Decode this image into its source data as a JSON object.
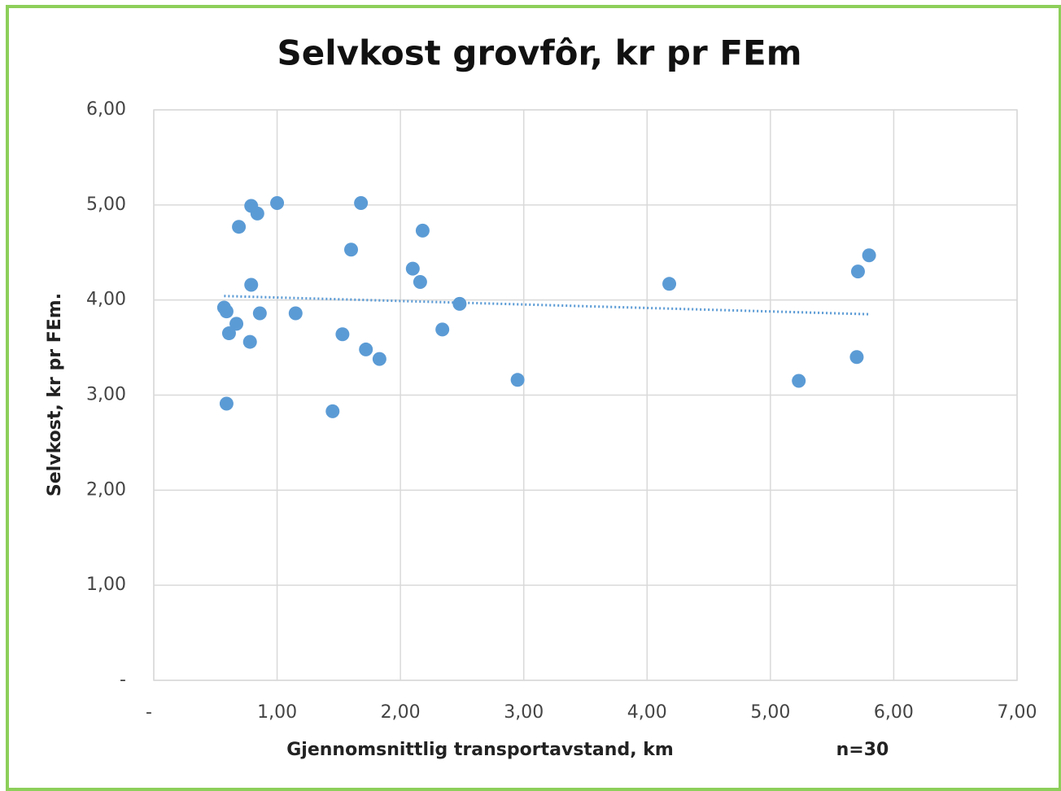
{
  "chart_data": {
    "type": "scatter",
    "title": "Selvkost grovfôr, kr pr FEm",
    "x_label": "Gjennomsnittlig transportavstand,  km",
    "y_label": "Selvkost, kr pr FEm.",
    "annotation": "n=30",
    "color": "#5b9bd5",
    "trendline": {
      "color": "#5b9bd5",
      "style": "dotted"
    },
    "grid": true,
    "x": [
      0.57,
      0.59,
      0.61,
      0.67,
      0.59,
      0.69,
      0.79,
      0.84,
      0.79,
      0.78,
      0.86,
      1.0,
      1.15,
      1.45,
      1.53,
      1.6,
      1.68,
      1.72,
      1.83,
      2.1,
      2.16,
      2.18,
      2.34,
      2.48,
      2.95,
      4.18,
      5.23,
      5.7,
      5.71,
      5.8
    ],
    "values": [
      3.92,
      3.88,
      3.65,
      3.75,
      2.91,
      4.77,
      4.99,
      4.91,
      4.16,
      3.56,
      3.86,
      5.02,
      3.86,
      2.83,
      3.64,
      4.53,
      5.02,
      3.48,
      3.38,
      4.33,
      4.19,
      4.73,
      3.69,
      3.96,
      3.16,
      4.17,
      3.15,
      3.4,
      4.3,
      4.47
    ],
    "xlim": [
      0,
      7
    ],
    "xticks": [
      {
        "value": 0,
        "label": "-"
      },
      {
        "value": 1,
        "label": "1,00"
      },
      {
        "value": 2,
        "label": "2,00"
      },
      {
        "value": 3,
        "label": "3,00"
      },
      {
        "value": 4,
        "label": "4,00"
      },
      {
        "value": 5,
        "label": "5,00"
      },
      {
        "value": 6,
        "label": "6,00"
      },
      {
        "value": 7,
        "label": "7,00"
      }
    ],
    "ylim": [
      0,
      6
    ],
    "yticks": [
      {
        "value": 0,
        "label": "-"
      },
      {
        "value": 1,
        "label": "1,00"
      },
      {
        "value": 2,
        "label": "2,00"
      },
      {
        "value": 3,
        "label": "3,00"
      },
      {
        "value": 4,
        "label": "4,00"
      },
      {
        "value": 5,
        "label": "5,00"
      },
      {
        "value": 6,
        "label": "6,00"
      }
    ]
  }
}
